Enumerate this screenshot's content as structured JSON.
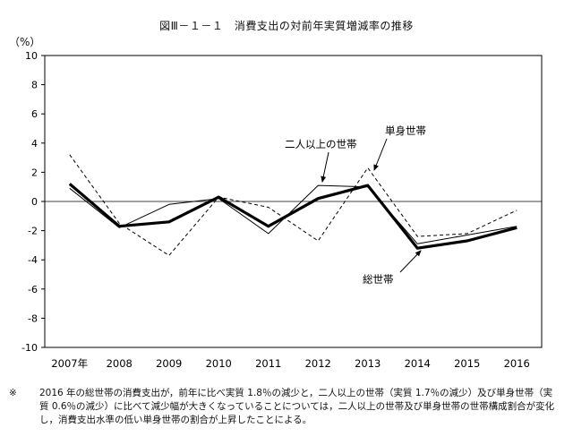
{
  "chart_data": {
    "type": "line",
    "title": "図Ⅲ－１－１　消費支出の対前年実質増減率の推移",
    "ylabel": "（%）",
    "categories": [
      "2007年",
      "2008",
      "2009",
      "2010",
      "2011",
      "2012",
      "2013",
      "2014",
      "2015",
      "2016"
    ],
    "ylim": [
      -10,
      10
    ],
    "yticks": [
      10,
      8,
      6,
      4,
      2,
      0,
      -2,
      -4,
      -6,
      -8,
      -10
    ],
    "grid": false,
    "series": [
      {
        "name": "総世帯",
        "values": [
          1.2,
          -1.7,
          -1.4,
          0.3,
          -1.7,
          0.2,
          1.1,
          -3.2,
          -2.7,
          -1.8
        ],
        "style": "thick",
        "color": "#000000"
      },
      {
        "name": "二人以上の世帯",
        "values": [
          0.9,
          -1.8,
          -0.2,
          0.2,
          -2.2,
          1.1,
          1.0,
          -2.9,
          -2.3,
          -1.7
        ],
        "style": "thin",
        "color": "#000000"
      },
      {
        "name": "単身世帯",
        "values": [
          3.2,
          -1.5,
          -3.7,
          0.3,
          -0.4,
          -2.7,
          2.3,
          -2.4,
          -2.2,
          -0.6
        ],
        "style": "dashed",
        "color": "#000000"
      }
    ],
    "annotations": [
      "二人以上の世帯",
      "単身世帯",
      "総世帯"
    ]
  },
  "note": {
    "mark": "※",
    "text": "2016 年の総世帯の消費支出が，前年に比べ実質 1.8％の減少と，二人以上の世帯（実質 1.7％の減少）及び単身世帯（実質 0.6％の減少）に比べて減少幅が大きくなっていることについては，二人以上の世帯及び単身世帯の世帯構成割合が変化し，消費支出水準の低い単身世帯の割合が上昇したことによる。"
  }
}
